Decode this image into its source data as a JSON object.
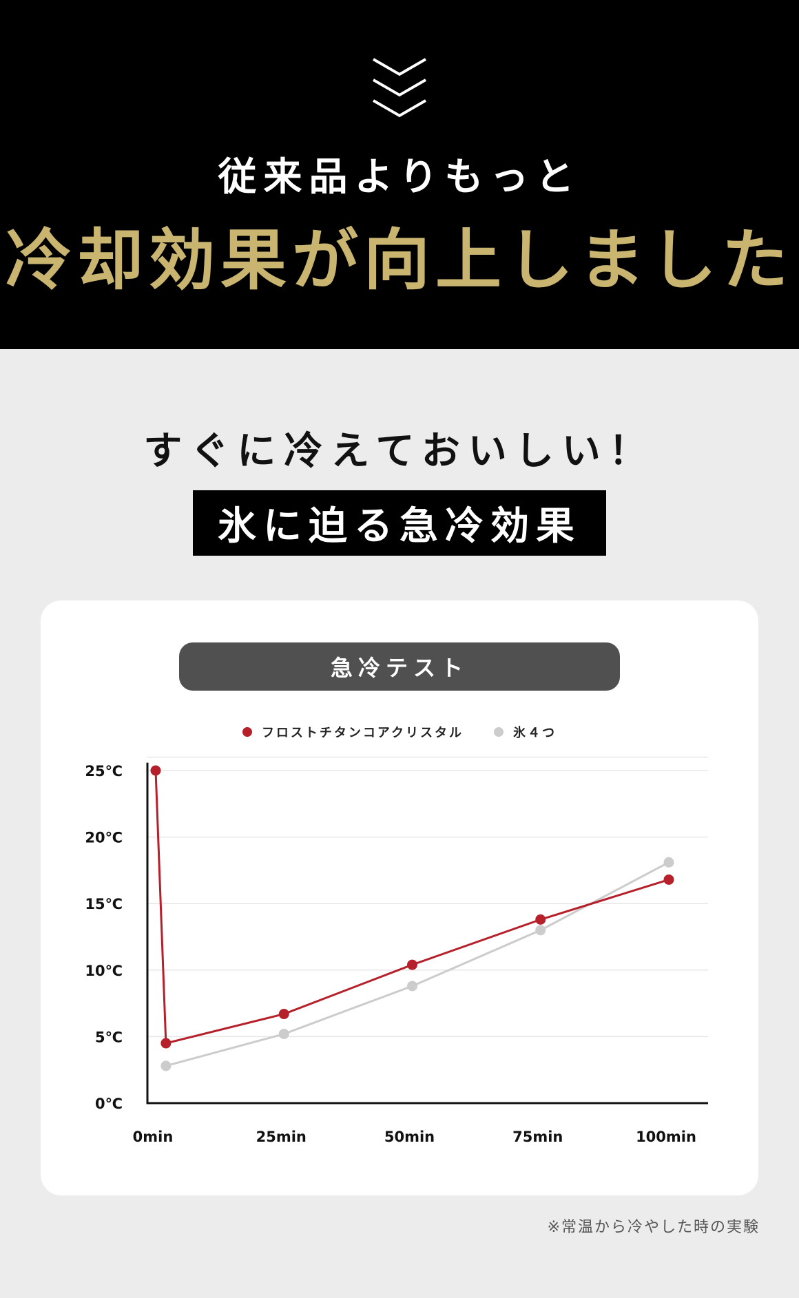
{
  "hero": {
    "scroll_icon": "triple-chevron-down-icon",
    "line1": "従来品よりもっと",
    "line2": "冷却効果が向上しました"
  },
  "section": {
    "subtitle": "すぐに冷えておいしい！",
    "headline": "氷に迫る急冷効果"
  },
  "colors": {
    "hero_bg": "#000000",
    "gold": "#c9b56f",
    "page_bg": "#ececec",
    "pill_bg": "#505050"
  },
  "footnote": "※常温から冷やした時の実験",
  "chart_data": {
    "type": "line",
    "title": "急冷テスト",
    "xlabel": "",
    "ylabel": "",
    "x_tick_labels": [
      "0min",
      "25min",
      "50min",
      "75min",
      "100min"
    ],
    "x_ticks": [
      0,
      25,
      50,
      75,
      100
    ],
    "y_tick_labels": [
      "0℃",
      "5℃",
      "10℃",
      "15℃",
      "20℃",
      "25℃"
    ],
    "y_ticks": [
      0,
      5,
      10,
      15,
      20,
      25
    ],
    "xlim": [
      0,
      100
    ],
    "ylim": [
      0,
      25
    ],
    "grid": true,
    "legend": "top-center",
    "series": [
      {
        "name": "フロストチタンコアクリスタル",
        "color": "#b5202a",
        "x": [
          0,
          2,
          25,
          50,
          75,
          100
        ],
        "y": [
          25,
          4.5,
          6.7,
          10.4,
          13.8,
          16.8
        ]
      },
      {
        "name": "氷４つ",
        "color": "#cccccc",
        "x": [
          2,
          25,
          50,
          75,
          100
        ],
        "y": [
          2.8,
          5.2,
          8.8,
          13.0,
          18.1
        ]
      }
    ]
  }
}
